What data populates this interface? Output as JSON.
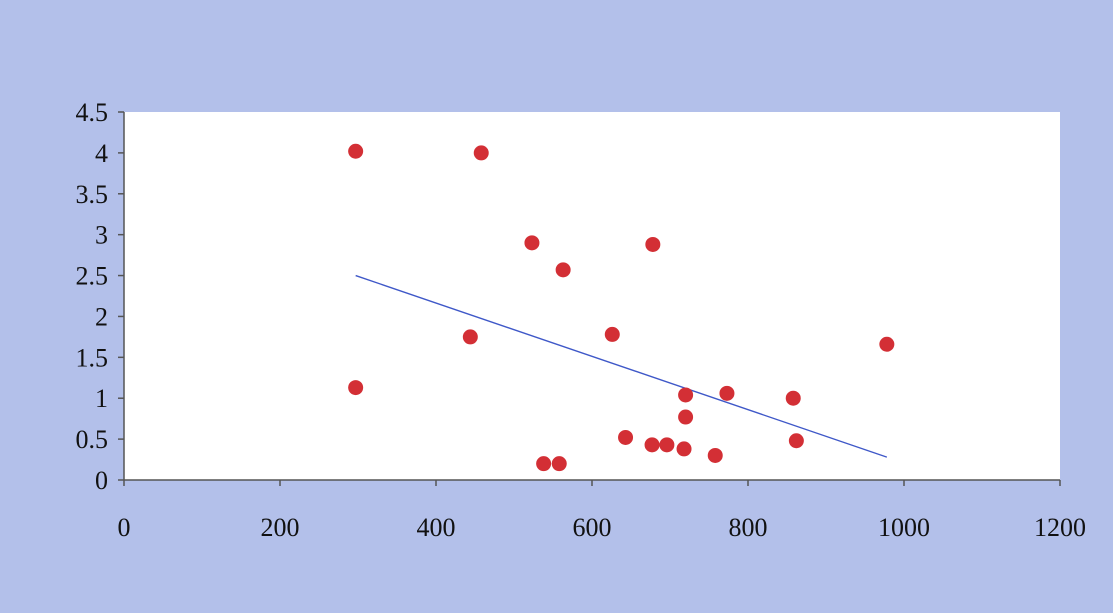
{
  "chart_data": {
    "type": "scatter",
    "title": "",
    "xlabel": "",
    "ylabel": "",
    "xlim": [
      0,
      1200
    ],
    "ylim": [
      0,
      4.5
    ],
    "x_ticks": [
      0,
      200,
      400,
      600,
      800,
      1000,
      1200
    ],
    "y_ticks": [
      0,
      0.5,
      1,
      1.5,
      2,
      2.5,
      3,
      3.5,
      4,
      4.5
    ],
    "x_tick_labels": [
      "0",
      "200",
      "400",
      "600",
      "800",
      "1000",
      "1200"
    ],
    "y_tick_labels": [
      "0",
      "0.5",
      "1",
      "1.5",
      "2",
      "2.5",
      "3",
      "3.5",
      "4",
      "4.5"
    ],
    "grid": false,
    "legend": "none",
    "series": [
      {
        "points": [
          {
            "x": 297,
            "y": 4.02
          },
          {
            "x": 458,
            "y": 4.0
          },
          {
            "x": 523,
            "y": 2.9
          },
          {
            "x": 678,
            "y": 2.88
          },
          {
            "x": 563,
            "y": 2.57
          },
          {
            "x": 626,
            "y": 1.78
          },
          {
            "x": 444,
            "y": 1.75
          },
          {
            "x": 978,
            "y": 1.66
          },
          {
            "x": 297,
            "y": 1.13
          },
          {
            "x": 773,
            "y": 1.06
          },
          {
            "x": 720,
            "y": 1.04
          },
          {
            "x": 858,
            "y": 1.0
          },
          {
            "x": 720,
            "y": 0.77
          },
          {
            "x": 643,
            "y": 0.52
          },
          {
            "x": 862,
            "y": 0.48
          },
          {
            "x": 677,
            "y": 0.43
          },
          {
            "x": 696,
            "y": 0.43
          },
          {
            "x": 718,
            "y": 0.38
          },
          {
            "x": 758,
            "y": 0.3
          },
          {
            "x": 538,
            "y": 0.2
          },
          {
            "x": 558,
            "y": 0.2
          }
        ],
        "trendline": {
          "x": [
            297,
            978
          ],
          "y": [
            2.5,
            0.28
          ]
        }
      }
    ],
    "colors": {
      "point": "#d32f35",
      "trendline": "#3f58c8",
      "plot_area": "#ffffff",
      "background": "#b3c0ea",
      "axis": "#555555",
      "text": "#111111"
    }
  }
}
